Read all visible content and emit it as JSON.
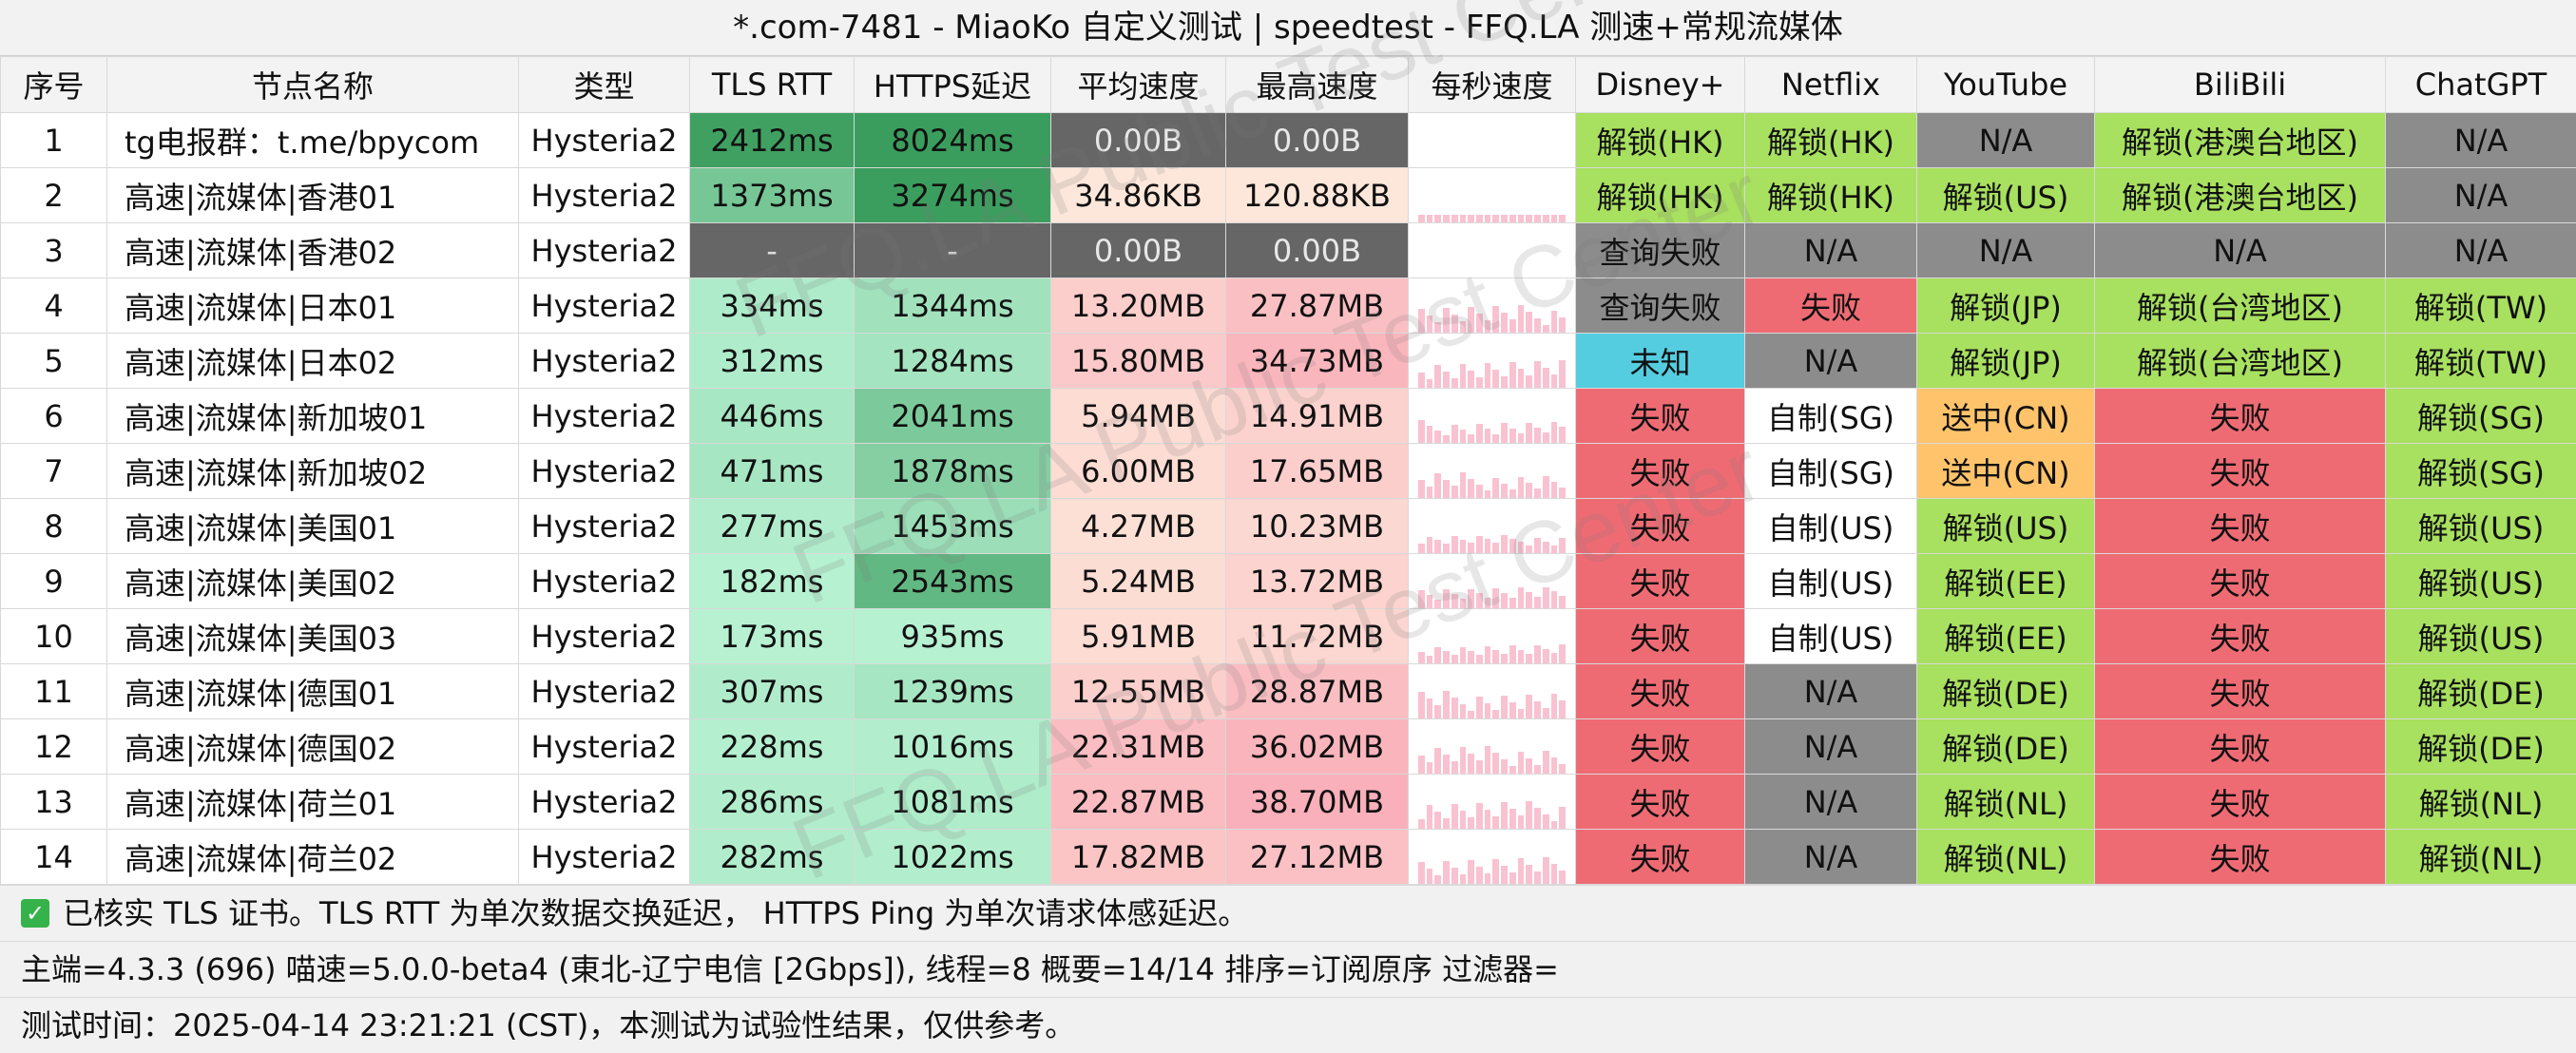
{
  "title": "*.com-7481 - MiaoKo 自定义测试 | speedtest - FFQ.LA 测速+常规流媒体",
  "watermark": "FFQ.LA Public Test Center",
  "headers": [
    "序号",
    "节点名称",
    "类型",
    "TLS RTT",
    "HTTPS延迟",
    "平均速度",
    "最高速度",
    "每秒速度",
    "Disney+",
    "Netflix",
    "YouTube",
    "BiliBili",
    "ChatGPT"
  ],
  "rows": [
    {
      "id": "1",
      "name": "tg电报群：t.me/bpycom",
      "type": "Hysteria2",
      "tls": "2412ms",
      "https": "8024ms",
      "avg": "0.00B",
      "max": "0.00B",
      "disney": "解锁(HK)",
      "netflix": "解锁(HK)",
      "youtube": "N/A",
      "bili": "解锁(港澳台地区)",
      "gpt": "N/A"
    },
    {
      "id": "2",
      "name": "高速|流媒体|香港01",
      "type": "Hysteria2",
      "tls": "1373ms",
      "https": "3274ms",
      "avg": "34.86KB",
      "max": "120.88KB",
      "disney": "解锁(HK)",
      "netflix": "解锁(HK)",
      "youtube": "解锁(US)",
      "bili": "解锁(港澳台地区)",
      "gpt": "N/A"
    },
    {
      "id": "3",
      "name": "高速|流媒体|香港02",
      "type": "Hysteria2",
      "tls": "-",
      "https": "-",
      "avg": "0.00B",
      "max": "0.00B",
      "disney": "查询失败",
      "netflix": "N/A",
      "youtube": "N/A",
      "bili": "N/A",
      "gpt": "N/A"
    },
    {
      "id": "4",
      "name": "高速|流媒体|日本01",
      "type": "Hysteria2",
      "tls": "334ms",
      "https": "1344ms",
      "avg": "13.20MB",
      "max": "27.87MB",
      "disney": "查询失败",
      "netflix": "失败",
      "youtube": "解锁(JP)",
      "bili": "解锁(台湾地区)",
      "gpt": "解锁(TW)"
    },
    {
      "id": "5",
      "name": "高速|流媒体|日本02",
      "type": "Hysteria2",
      "tls": "312ms",
      "https": "1284ms",
      "avg": "15.80MB",
      "max": "34.73MB",
      "disney": "未知",
      "netflix": "N/A",
      "youtube": "解锁(JP)",
      "bili": "解锁(台湾地区)",
      "gpt": "解锁(TW)"
    },
    {
      "id": "6",
      "name": "高速|流媒体|新加坡01",
      "type": "Hysteria2",
      "tls": "446ms",
      "https": "2041ms",
      "avg": "5.94MB",
      "max": "14.91MB",
      "disney": "失败",
      "netflix": "自制(SG)",
      "youtube": "送中(CN)",
      "bili": "失败",
      "gpt": "解锁(SG)"
    },
    {
      "id": "7",
      "name": "高速|流媒体|新加坡02",
      "type": "Hysteria2",
      "tls": "471ms",
      "https": "1878ms",
      "avg": "6.00MB",
      "max": "17.65MB",
      "disney": "失败",
      "netflix": "自制(SG)",
      "youtube": "送中(CN)",
      "bili": "失败",
      "gpt": "解锁(SG)"
    },
    {
      "id": "8",
      "name": "高速|流媒体|美国01",
      "type": "Hysteria2",
      "tls": "277ms",
      "https": "1453ms",
      "avg": "4.27MB",
      "max": "10.23MB",
      "disney": "失败",
      "netflix": "自制(US)",
      "youtube": "解锁(US)",
      "bili": "失败",
      "gpt": "解锁(US)"
    },
    {
      "id": "9",
      "name": "高速|流媒体|美国02",
      "type": "Hysteria2",
      "tls": "182ms",
      "https": "2543ms",
      "avg": "5.24MB",
      "max": "13.72MB",
      "disney": "失败",
      "netflix": "自制(US)",
      "youtube": "解锁(EE)",
      "bili": "失败",
      "gpt": "解锁(US)"
    },
    {
      "id": "10",
      "name": "高速|流媒体|美国03",
      "type": "Hysteria2",
      "tls": "173ms",
      "https": "935ms",
      "avg": "5.91MB",
      "max": "11.72MB",
      "disney": "失败",
      "netflix": "自制(US)",
      "youtube": "解锁(EE)",
      "bili": "失败",
      "gpt": "解锁(US)"
    },
    {
      "id": "11",
      "name": "高速|流媒体|德国01",
      "type": "Hysteria2",
      "tls": "307ms",
      "https": "1239ms",
      "avg": "12.55MB",
      "max": "28.87MB",
      "disney": "失败",
      "netflix": "N/A",
      "youtube": "解锁(DE)",
      "bili": "失败",
      "gpt": "解锁(DE)"
    },
    {
      "id": "12",
      "name": "高速|流媒体|德国02",
      "type": "Hysteria2",
      "tls": "228ms",
      "https": "1016ms",
      "avg": "22.31MB",
      "max": "36.02MB",
      "disney": "失败",
      "netflix": "N/A",
      "youtube": "解锁(DE)",
      "bili": "失败",
      "gpt": "解锁(DE)"
    },
    {
      "id": "13",
      "name": "高速|流媒体|荷兰01",
      "type": "Hysteria2",
      "tls": "286ms",
      "https": "1081ms",
      "avg": "22.87MB",
      "max": "38.70MB",
      "disney": "失败",
      "netflix": "N/A",
      "youtube": "解锁(NL)",
      "bili": "失败",
      "gpt": "解锁(NL)"
    },
    {
      "id": "14",
      "name": "高速|流媒体|荷兰02",
      "type": "Hysteria2",
      "tls": "282ms",
      "https": "1022ms",
      "avg": "17.82MB",
      "max": "27.12MB",
      "disney": "失败",
      "netflix": "N/A",
      "youtube": "解锁(NL)",
      "bili": "失败",
      "gpt": "解锁(NL)"
    }
  ],
  "footer": {
    "check_icon": "check-icon",
    "note": "已核实 TLS 证书。TLS RTT 为单次数据交换延迟， HTTPS Ping 为单次请求体感延迟。",
    "info": "主端=4.3.3 (696) 喵速=5.0.0-beta4 (東北-辽宁电信 [2Gbps]), 线程=8 概要=14/14 排序=订阅原序 过滤器=",
    "time": "测试时间：2025-04-14 23:21:21 (CST)，本测试为试验性结果，仅供参考。"
  },
  "colors": {
    "unlock": "#a8e05f",
    "fail": "#ef6b74",
    "na": "#8c8c8c",
    "homemade": "#ffffff",
    "sent_cn": "#ffc46b",
    "unknown": "#54cde0",
    "query_fail": "#8c8c8c",
    "speed_zero": "#666666"
  }
}
